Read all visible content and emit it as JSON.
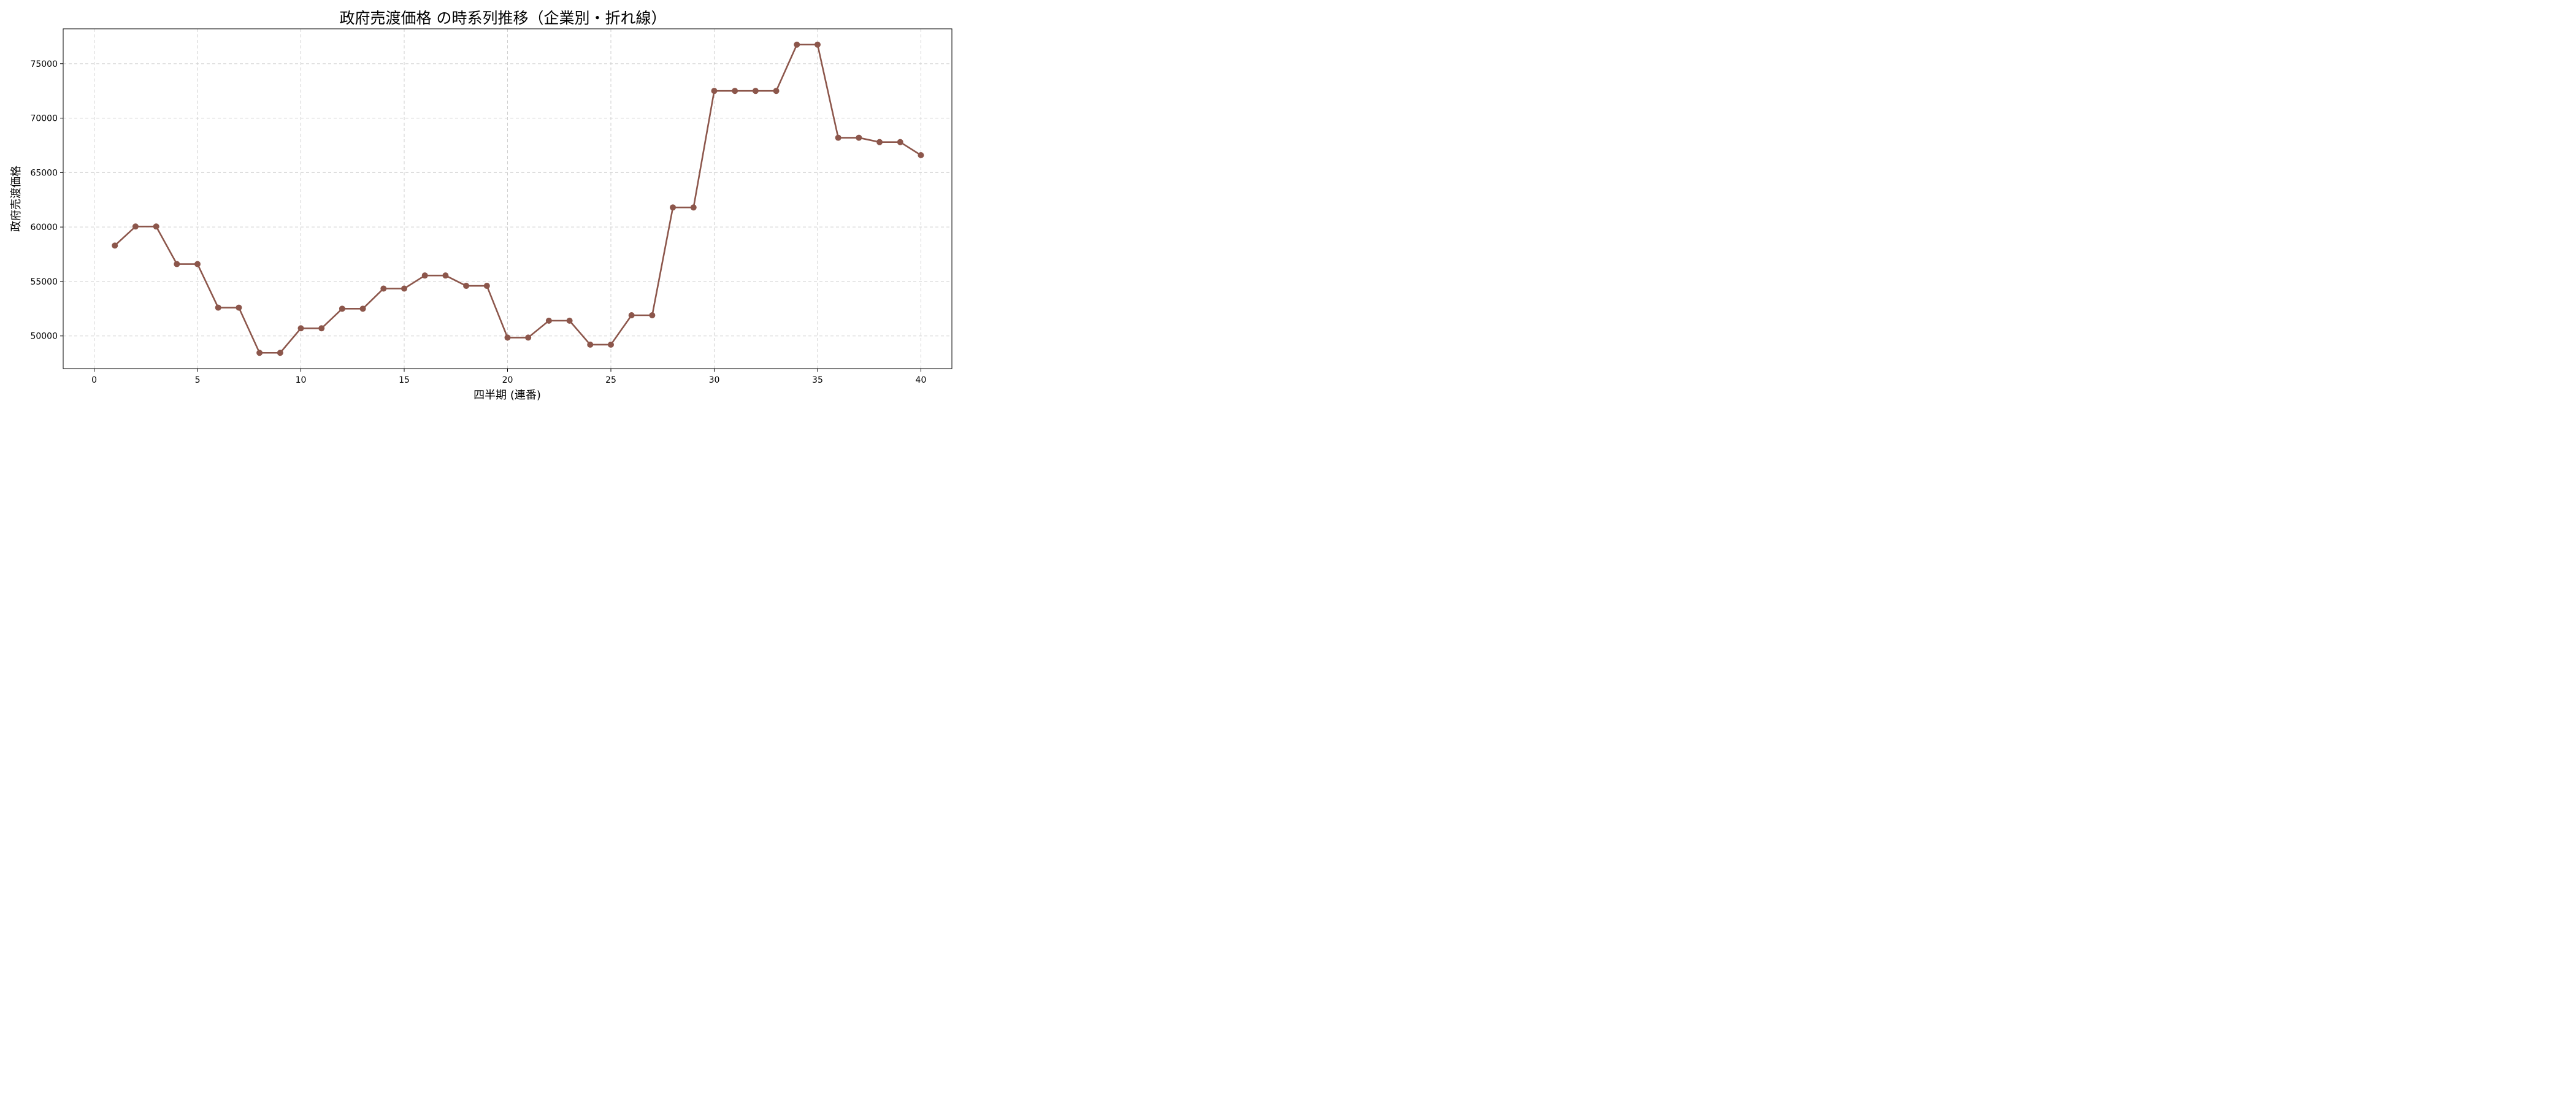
{
  "chart_data": {
    "type": "line",
    "title": "政府売渡価格 の時系列推移（企業別・折れ線）",
    "xlabel": "四半期 (連番)",
    "ylabel": "政府売渡価格",
    "xlim": [
      -1.5,
      41.5
    ],
    "ylim": [
      47000,
      78200
    ],
    "xticks": [
      0,
      5,
      10,
      15,
      20,
      25,
      30,
      35,
      40
    ],
    "yticks": [
      50000,
      55000,
      60000,
      65000,
      70000,
      75000
    ],
    "grid": true,
    "legend": "none",
    "line_color": "#8c564b",
    "series": [
      {
        "x": [
          1,
          2,
          3,
          4,
          5,
          6,
          7,
          8,
          9,
          10,
          11,
          12,
          13,
          14,
          15,
          16,
          17,
          18,
          19,
          20,
          21,
          22,
          23,
          24,
          25,
          26,
          27,
          28,
          29,
          30,
          31,
          32,
          33,
          34,
          35,
          36,
          37,
          38,
          39,
          40
        ],
        "values": [
          58300,
          60050,
          60050,
          56600,
          56600,
          52600,
          52600,
          48450,
          48450,
          50700,
          50700,
          52500,
          52500,
          54350,
          54350,
          55550,
          55550,
          54600,
          54600,
          49850,
          49850,
          51400,
          51400,
          49200,
          49200,
          51900,
          51900,
          61800,
          61800,
          72500,
          72500,
          72500,
          72500,
          76750,
          76750,
          68200,
          68200,
          67800,
          67800,
          66600
        ]
      }
    ]
  }
}
